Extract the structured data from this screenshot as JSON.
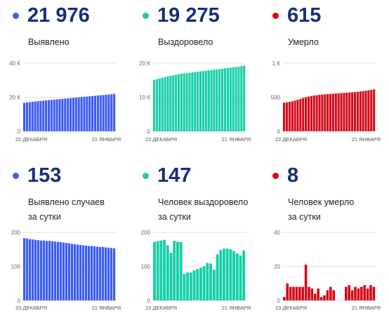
{
  "colors": {
    "blue": "#3a5cf5",
    "green": "#16cfa7",
    "red": "#d30a1a",
    "number": "#1a2d7a"
  },
  "chart_data": [
    {
      "type": "bar",
      "color": "#3a5cf5",
      "headline": "21 976",
      "label_lines": [
        "Выявлено"
      ],
      "x_start": "22 ДЕКАБРЯ",
      "x_end": "21 ЯНВАРЯ",
      "ylim": [
        0,
        40000
      ],
      "yticks": [
        0,
        20000,
        40000
      ],
      "ytick_labels": [
        "0",
        "20 К",
        "40 К"
      ],
      "values": [
        16700,
        16900,
        17100,
        17300,
        17500,
        17700,
        17800,
        18000,
        18150,
        18300,
        18450,
        18600,
        18750,
        18900,
        19050,
        19200,
        19350,
        19500,
        19650,
        19800,
        19950,
        20100,
        20250,
        20400,
        20550,
        20700,
        20850,
        21000,
        21150,
        21300,
        21450,
        21600,
        21780,
        21976
      ]
    },
    {
      "type": "bar",
      "color": "#16cfa7",
      "headline": "19 275",
      "label_lines": [
        "Выздоровело"
      ],
      "x_start": "22 ДЕКАБРЯ",
      "x_end": "21 ЯНВАРЯ",
      "ylim": [
        0,
        20000
      ],
      "yticks": [
        0,
        10000,
        20000
      ],
      "ytick_labels": [
        "0",
        "10 К",
        "20 К"
      ],
      "values": [
        15100,
        15300,
        15500,
        15700,
        15900,
        16100,
        16300,
        16450,
        16600,
        16750,
        16900,
        17000,
        17100,
        17200,
        17300,
        17400,
        17500,
        17600,
        17700,
        17800,
        17900,
        18000,
        18100,
        18200,
        18300,
        18400,
        18500,
        18600,
        18700,
        18800,
        18900,
        19000,
        19130,
        19275
      ]
    },
    {
      "type": "bar",
      "color": "#d30a1a",
      "headline": "615",
      "label_lines": [
        "Умерло"
      ],
      "x_start": "22 ДЕКАБРЯ",
      "x_end": "21 ЯНВАРЯ",
      "ylim": [
        0,
        1000
      ],
      "yticks": [
        0,
        500,
        1000
      ],
      "ytick_labels": [
        "0",
        "500",
        "1 К"
      ],
      "values": [
        420,
        425,
        432,
        440,
        450,
        462,
        475,
        490,
        500,
        510,
        518,
        525,
        530,
        535,
        540,
        543,
        546,
        549,
        552,
        555,
        558,
        561,
        564,
        567,
        570,
        573,
        576,
        580,
        585,
        590,
        596,
        602,
        608,
        615
      ]
    },
    {
      "type": "bar",
      "color": "#3a5cf5",
      "headline": "153",
      "label_lines": [
        "Выявлено случаев",
        "за сутки"
      ],
      "x_start": "23 ДЕКАБРЯ",
      "x_end": "21 ЯНВАРЯ",
      "ylim": [
        0,
        200
      ],
      "yticks": [
        0,
        100,
        200
      ],
      "ytick_labels": [
        "0",
        "100",
        "200"
      ],
      "values": [
        183,
        182,
        180,
        179,
        178,
        177,
        176,
        176,
        175,
        175,
        174,
        173,
        172,
        171,
        170,
        169,
        168,
        166,
        165,
        164,
        163,
        162,
        161,
        160,
        160,
        159,
        158,
        157,
        157,
        156,
        155,
        154,
        153
      ]
    },
    {
      "type": "bar",
      "color": "#16cfa7",
      "headline": "147",
      "label_lines": [
        "Человек выздоровело",
        "за сутки"
      ],
      "x_start": "23 ДЕКАБРЯ",
      "x_end": "21 ЯНВАРЯ",
      "ylim": [
        0,
        200
      ],
      "yticks": [
        0,
        100,
        200
      ],
      "ytick_labels": [
        "0",
        "100",
        "200"
      ],
      "values": [
        172,
        174,
        176,
        178,
        162,
        140,
        175,
        172,
        172,
        78,
        82,
        82,
        88,
        92,
        96,
        100,
        110,
        108,
        90,
        135,
        148,
        152,
        152,
        150,
        145,
        138,
        132,
        147
      ]
    },
    {
      "type": "bar",
      "color": "#d30a1a",
      "headline": "8",
      "label_lines": [
        "Человек умерло",
        "за сутки"
      ],
      "x_start": "23 ДЕКАБРЯ",
      "x_end": "21 ЯНВАРЯ",
      "ylim": [
        0,
        40
      ],
      "yticks": [
        0,
        20,
        40
      ],
      "ytick_labels": [
        "0",
        "20",
        "40"
      ],
      "values": [
        2,
        10,
        8,
        8,
        8,
        8,
        8,
        21,
        8,
        7,
        4,
        7,
        2,
        3,
        6,
        8,
        6,
        0,
        0,
        0,
        8,
        9,
        6,
        8,
        7,
        8,
        9,
        7,
        9,
        8
      ]
    }
  ]
}
